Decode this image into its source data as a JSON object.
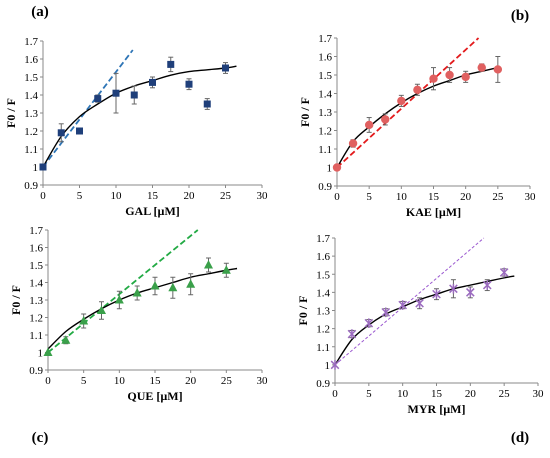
{
  "figure": {
    "panels": [
      {
        "key": "a",
        "label": "(a)",
        "xlabel": "GAL [µM]",
        "ylabel": "F0 / F",
        "color": "#1f3f7a",
        "fit_color": "#000000",
        "linear_color": "#2e75b6",
        "marker": "square"
      },
      {
        "key": "b",
        "label": "(b)",
        "xlabel": "KAE [µM]",
        "ylabel": "F0 / F",
        "color": "#e06060",
        "fit_color": "#000000",
        "linear_color": "#e31a1c",
        "marker": "circle"
      },
      {
        "key": "c",
        "label": "(c)",
        "xlabel": "QUE [µM]",
        "ylabel": "F0 / F",
        "color": "#3aa04a",
        "fit_color": "#000000",
        "linear_color": "#22aa44",
        "marker": "triangle"
      },
      {
        "key": "d",
        "label": "(d)",
        "xlabel": "MYR [µM]",
        "ylabel": "F0 / F",
        "color": "#9b6bbf",
        "fit_color": "#000000",
        "linear_color": "#9b59d0",
        "marker": "star"
      }
    ]
  },
  "chart_data": [
    {
      "type": "scatter",
      "title": "(a)",
      "xlabel": "GAL [µM]",
      "ylabel": "F0 / F",
      "xlim": [
        0,
        30
      ],
      "ylim": [
        0.9,
        1.7
      ],
      "xticks": [
        "0",
        "5",
        "10",
        "15",
        "20",
        "25",
        "30"
      ],
      "yticks": [
        "0.9",
        "1",
        "1.1",
        "1.2",
        "1.3",
        "1.4",
        "1.5",
        "1.6",
        "1.7"
      ],
      "series": [
        {
          "kind": "points",
          "x": [
            0,
            2.5,
            5,
            7.5,
            10,
            12.5,
            15,
            17.5,
            20,
            22.5,
            25
          ],
          "y": [
            1.0,
            1.19,
            1.2,
            1.38,
            1.41,
            1.4,
            1.47,
            1.57,
            1.46,
            1.35,
            1.55
          ],
          "err": [
            0.0,
            0.05,
            0.0,
            0.02,
            0.11,
            0.05,
            0.03,
            0.04,
            0.03,
            0.03,
            0.03
          ]
        },
        {
          "kind": "fit-curve",
          "x": [
            0,
            2.5,
            5,
            7.5,
            10,
            12.5,
            15,
            17.5,
            20,
            22.5,
            25,
            26.5
          ],
          "y": [
            1.0,
            1.17,
            1.28,
            1.35,
            1.41,
            1.45,
            1.48,
            1.51,
            1.53,
            1.54,
            1.55,
            1.56
          ]
        },
        {
          "kind": "linear-fit",
          "x": [
            0,
            12.3
          ],
          "y": [
            1.0,
            1.65
          ]
        }
      ]
    },
    {
      "type": "scatter",
      "title": "(b)",
      "xlabel": "KAE [µM]",
      "ylabel": "F0 / F",
      "xlim": [
        0,
        30
      ],
      "ylim": [
        0.9,
        1.7
      ],
      "xticks": [
        "0",
        "5",
        "10",
        "15",
        "20",
        "25",
        "30"
      ],
      "yticks": [
        "0.9",
        "1",
        "1.1",
        "1.2",
        "1.3",
        "1.4",
        "1.5",
        "1.6",
        "1.7"
      ],
      "series": [
        {
          "kind": "points",
          "x": [
            0,
            2.5,
            5,
            7.5,
            10,
            12.5,
            15,
            17.5,
            20,
            22.5,
            25
          ],
          "y": [
            1.0,
            1.13,
            1.23,
            1.26,
            1.36,
            1.42,
            1.48,
            1.5,
            1.49,
            1.54,
            1.53
          ],
          "err": [
            0.0,
            0.02,
            0.04,
            0.03,
            0.03,
            0.03,
            0.06,
            0.04,
            0.03,
            0.02,
            0.07
          ]
        },
        {
          "kind": "fit-curve",
          "x": [
            0,
            2.5,
            5,
            7.5,
            10,
            12.5,
            15,
            17.5,
            20,
            22.5,
            25
          ],
          "y": [
            1.0,
            1.14,
            1.22,
            1.29,
            1.35,
            1.4,
            1.44,
            1.47,
            1.5,
            1.52,
            1.54
          ]
        },
        {
          "kind": "linear-fit",
          "x": [
            0,
            22
          ],
          "y": [
            1.0,
            1.7
          ]
        }
      ]
    },
    {
      "type": "scatter",
      "title": "(c)",
      "xlabel": "QUE [µM]",
      "ylabel": "F0 / F",
      "xlim": [
        0,
        30
      ],
      "ylim": [
        0.9,
        1.7
      ],
      "xticks": [
        "0",
        "5",
        "10",
        "15",
        "20",
        "25",
        "30"
      ],
      "yticks": [
        "0.9",
        "1",
        "1.1",
        "1.2",
        "1.3",
        "1.4",
        "1.5",
        "1.6",
        "1.7"
      ],
      "series": [
        {
          "kind": "points",
          "x": [
            0,
            2.5,
            5,
            7.5,
            10,
            12.5,
            15,
            17.5,
            20,
            22.5,
            25
          ],
          "y": [
            1.0,
            1.07,
            1.18,
            1.24,
            1.3,
            1.34,
            1.38,
            1.37,
            1.39,
            1.5,
            1.47
          ],
          "err": [
            0.0,
            0.02,
            0.04,
            0.05,
            0.05,
            0.04,
            0.05,
            0.06,
            0.06,
            0.04,
            0.04
          ]
        },
        {
          "kind": "fit-curve",
          "x": [
            0,
            2.5,
            5,
            7.5,
            10,
            12.5,
            15,
            17.5,
            20,
            22.5,
            25,
            26.5
          ],
          "y": [
            1.02,
            1.12,
            1.19,
            1.25,
            1.3,
            1.34,
            1.37,
            1.4,
            1.43,
            1.45,
            1.47,
            1.48
          ]
        },
        {
          "kind": "linear-fit",
          "x": [
            0,
            21
          ],
          "y": [
            1.0,
            1.7
          ]
        }
      ]
    },
    {
      "type": "scatter",
      "title": "(d)",
      "xlabel": "MYR [µM]",
      "ylabel": "F0 / F",
      "xlim": [
        0,
        30
      ],
      "ylim": [
        0.9,
        1.7
      ],
      "xticks": [
        "0",
        "5",
        "10",
        "15",
        "20",
        "25",
        "30"
      ],
      "yticks": [
        "0.9",
        "1",
        "1.1",
        "1.2",
        "1.3",
        "1.4",
        "1.5",
        "1.6",
        "1.7"
      ],
      "series": [
        {
          "kind": "points",
          "x": [
            0,
            2.5,
            5,
            7.5,
            10,
            12.5,
            15,
            17.5,
            20,
            22.5,
            25
          ],
          "y": [
            1.0,
            1.17,
            1.23,
            1.29,
            1.33,
            1.34,
            1.39,
            1.42,
            1.4,
            1.44,
            1.51
          ],
          "err": [
            0.0,
            0.02,
            0.02,
            0.02,
            0.02,
            0.03,
            0.03,
            0.05,
            0.03,
            0.03,
            0.02
          ]
        },
        {
          "kind": "fit-curve",
          "x": [
            0,
            2.5,
            5,
            7.5,
            10,
            12.5,
            15,
            17.5,
            20,
            22.5,
            25,
            26.5
          ],
          "y": [
            1.0,
            1.14,
            1.22,
            1.28,
            1.32,
            1.36,
            1.39,
            1.42,
            1.44,
            1.46,
            1.48,
            1.49
          ]
        },
        {
          "kind": "linear-fit",
          "x": [
            0,
            22
          ],
          "y": [
            1.0,
            1.7
          ]
        }
      ]
    }
  ]
}
